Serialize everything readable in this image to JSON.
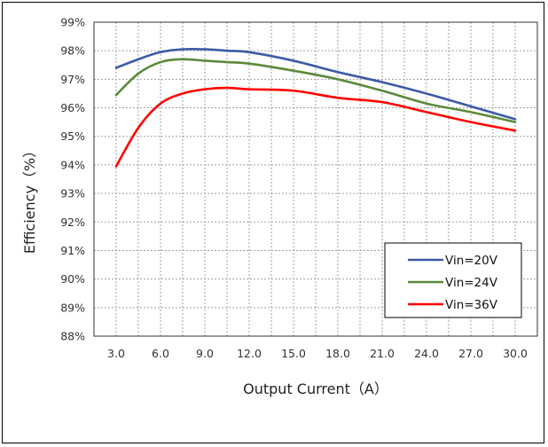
{
  "chart_data": {
    "type": "line",
    "title": "",
    "xlabel": "Output Current（A）",
    "ylabel": "Efficiency（%）",
    "x_ticks": [
      "3.0",
      "6.0",
      "9.0",
      "12.0",
      "15.0",
      "18.0",
      "21.0",
      "24.0",
      "27.0",
      "30.0"
    ],
    "y_ticks": [
      "88%",
      "89%",
      "90%",
      "91%",
      "92%",
      "93%",
      "94%",
      "95%",
      "96%",
      "97%",
      "98%",
      "99%"
    ],
    "xlim": [
      1.5,
      31.5
    ],
    "ylim": [
      88,
      99
    ],
    "grid": true,
    "legend_position": "bottom-right",
    "series": [
      {
        "name": "Vin=20V",
        "color": "#3b5ba5",
        "x": [
          3,
          4.5,
          6,
          7.5,
          9,
          10.5,
          12,
          15,
          18,
          21,
          24,
          27,
          30
        ],
        "y": [
          97.4,
          97.7,
          97.95,
          98.05,
          98.05,
          98.0,
          97.95,
          97.65,
          97.25,
          96.9,
          96.5,
          96.05,
          95.6
        ]
      },
      {
        "name": "Vin=24V",
        "color": "#5b8a3a",
        "x": [
          3,
          4.5,
          6,
          7.5,
          9,
          10.5,
          12,
          15,
          18,
          21,
          24,
          27,
          30
        ],
        "y": [
          96.45,
          97.2,
          97.6,
          97.7,
          97.65,
          97.6,
          97.55,
          97.3,
          97.0,
          96.6,
          96.15,
          95.85,
          95.5
        ]
      },
      {
        "name": "Vin=36V",
        "color": "#ff0000",
        "x": [
          3,
          4.5,
          6,
          7.5,
          9,
          10.5,
          12,
          15,
          18,
          21,
          24,
          27,
          30
        ],
        "y": [
          93.95,
          95.3,
          96.15,
          96.5,
          96.65,
          96.7,
          96.65,
          96.6,
          96.35,
          96.2,
          95.85,
          95.5,
          95.2
        ]
      }
    ]
  }
}
